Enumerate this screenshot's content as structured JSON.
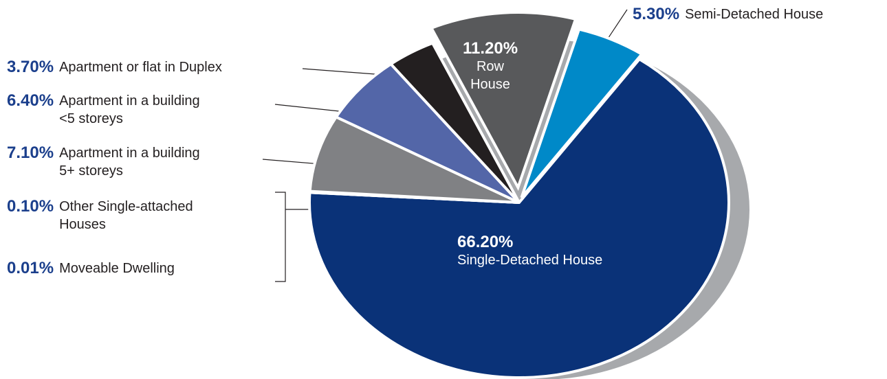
{
  "chart_data": {
    "type": "pie",
    "categories": [
      "Single-Detached House",
      "Moveable Dwelling",
      "Other Single-attached\nHouses",
      "Apartment in a building\n5+ storeys",
      "Apartment in a building\n<5 storeys",
      "Apartment or flat in Duplex",
      "Row\nHouse",
      "Semi-Detached House"
    ],
    "values": [
      66.2,
      0.01,
      0.1,
      7.1,
      6.4,
      3.7,
      11.2,
      5.3
    ],
    "value_labels": [
      "66.20%",
      "0.01%",
      "0.10%",
      "7.10%",
      "6.40%",
      "3.70%",
      "11.20%",
      "5.30%"
    ],
    "colors": [
      "#0a3278",
      "#cfd0d2",
      "#bcbec0",
      "#808184",
      "#5366a8",
      "#231f20",
      "#58595b",
      "#0089c8"
    ]
  }
}
